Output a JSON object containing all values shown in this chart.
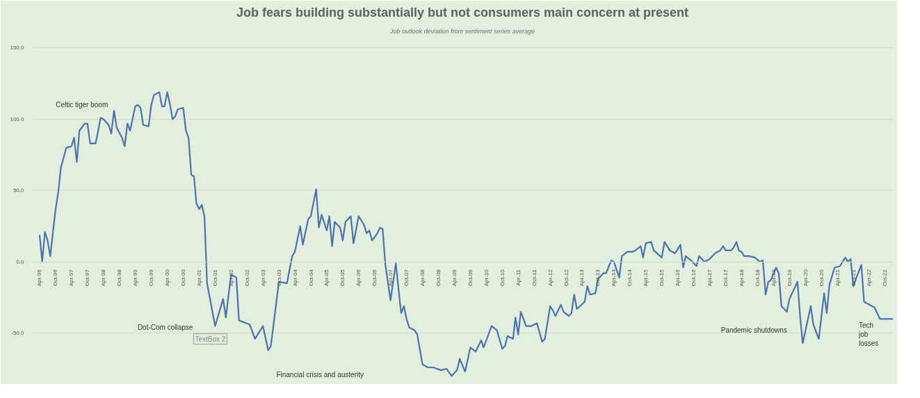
{
  "chart_data": {
    "type": "line",
    "title": "Job fears building substantially but not consumers main concern at present",
    "subtitle": "Job outlook deviation from sentiment series average",
    "x": [
      "1996-04",
      "1996-05",
      "1996-06",
      "1996-07",
      "1996-08",
      "1996-10",
      "1996-11",
      "1996-12",
      "1997-01",
      "1997-02",
      "1997-04",
      "1997-05",
      "1997-06",
      "1997-07",
      "1997-09",
      "1997-10",
      "1997-11",
      "1998-01",
      "1998-02",
      "1998-03",
      "1998-04",
      "1998-06",
      "1998-07",
      "1998-08",
      "1998-09",
      "1998-11",
      "1998-12",
      "1999-01",
      "1999-02",
      "1999-04",
      "1999-05",
      "1999-06",
      "1999-07",
      "1999-09",
      "1999-10",
      "1999-11",
      "2000-01",
      "2000-02",
      "2000-03",
      "2000-04",
      "2000-05",
      "2000-06",
      "2000-07",
      "2000-08",
      "2000-10",
      "2000-11",
      "2000-12",
      "2001-01",
      "2001-02",
      "2001-03",
      "2001-04",
      "2001-05",
      "2001-06",
      "2001-07",
      "2001-10",
      "2002-01",
      "2002-02",
      "2002-04",
      "2002-06",
      "2002-07",
      "2002-11",
      "2003-01",
      "2003-04",
      "2003-06",
      "2003-07",
      "2003-10",
      "2004-01",
      "2004-03",
      "2004-04",
      "2004-06",
      "2004-07",
      "2004-09",
      "2004-10",
      "2004-12",
      "2005-01",
      "2005-02",
      "2005-04",
      "2005-05",
      "2005-06",
      "2005-07",
      "2005-09",
      "2005-10",
      "2005-11",
      "2006-01",
      "2006-02",
      "2006-04",
      "2006-06",
      "2006-07",
      "2006-08",
      "2006-09",
      "2006-11",
      "2006-12",
      "2007-01",
      "2007-02",
      "2007-04",
      "2007-05",
      "2007-06",
      "2007-07",
      "2007-08",
      "2007-09",
      "2007-10",
      "2007-11",
      "2008-01",
      "2008-02",
      "2008-03",
      "2008-04",
      "2008-06",
      "2008-08",
      "2008-11",
      "2009-01",
      "2009-03",
      "2009-05",
      "2009-06",
      "2009-08",
      "2009-10",
      "2009-12",
      "2010-02",
      "2010-03",
      "2010-06",
      "2010-08",
      "2010-10",
      "2010-11",
      "2010-12",
      "2011-02",
      "2011-03",
      "2011-04",
      "2011-05",
      "2011-07",
      "2011-09",
      "2011-11",
      "2012-01",
      "2012-02",
      "2012-04",
      "2012-05",
      "2012-06",
      "2012-08",
      "2012-09",
      "2012-11",
      "2012-12",
      "2013-01",
      "2013-02",
      "2013-05",
      "2013-06",
      "2013-07",
      "2013-09",
      "2013-10",
      "2013-12",
      "2014-01",
      "2014-03",
      "2014-04",
      "2014-06",
      "2014-07",
      "2014-09",
      "2014-11",
      "2014-12",
      "2015-02",
      "2015-03",
      "2015-04",
      "2015-06",
      "2015-07",
      "2015-10",
      "2015-11",
      "2016-01",
      "2016-03",
      "2016-04",
      "2016-05",
      "2016-06",
      "2016-07",
      "2016-09",
      "2016-11",
      "2016-12",
      "2017-02",
      "2017-04",
      "2017-06",
      "2017-08",
      "2017-09",
      "2017-10",
      "2017-12",
      "2018-01",
      "2018-02",
      "2018-03",
      "2018-04",
      "2018-05",
      "2018-07",
      "2018-09",
      "2018-11",
      "2018-12",
      "2019-01",
      "2019-02",
      "2019-03",
      "2019-05",
      "2019-06",
      "2019-07",
      "2019-09",
      "2019-10",
      "2020-01",
      "2020-02",
      "2020-03",
      "2020-06",
      "2020-07",
      "2020-09",
      "2020-11",
      "2020-12",
      "2021-01",
      "2021-03",
      "2021-05",
      "2021-07",
      "2021-08",
      "2021-09",
      "2021-10",
      "2022-01",
      "2022-02",
      "2022-04",
      "2022-06",
      "2022-08",
      "2022-10",
      "2023-01"
    ],
    "series": [
      {
        "color": "#4a72b0",
        "values": [
          19,
          0,
          21,
          15,
          4,
          37,
          49,
          66,
          73,
          80,
          81,
          87,
          70,
          92,
          97,
          97,
          83,
          83,
          92,
          101,
          100,
          96,
          90,
          106,
          94,
          87,
          81,
          97,
          92,
          109,
          110,
          108,
          96,
          95,
          110,
          117,
          119,
          109,
          109,
          119,
          111,
          100,
          102,
          107,
          108,
          92,
          87,
          61,
          60,
          41,
          37,
          40,
          32,
          -15,
          -45,
          -26,
          -39,
          -9,
          -11,
          -41,
          -44,
          -54,
          -45,
          -62,
          -59,
          -14,
          -15,
          4,
          7,
          25,
          12,
          30,
          32,
          51,
          24,
          33,
          22,
          32,
          11,
          28,
          24,
          15,
          28,
          32,
          13,
          32,
          26,
          20,
          22,
          15,
          20,
          24,
          23,
          -2,
          -27,
          -14,
          -1,
          -19,
          -36,
          -31,
          -40,
          -46,
          -48,
          -51,
          -61,
          -72,
          -74,
          -74,
          -76,
          -75,
          -80,
          -76,
          -68,
          -77,
          -60,
          -63,
          -55,
          -60,
          -45,
          -48,
          -61,
          -59,
          -52,
          -54,
          -39,
          -51,
          -35,
          -45,
          -45,
          -43,
          -56,
          -54,
          -31,
          -34,
          -38,
          -30,
          -35,
          -38,
          -36,
          -23,
          -33,
          -28,
          -17,
          -23,
          -22,
          -12,
          -8,
          -8,
          1,
          0,
          -11,
          4,
          7,
          7,
          8,
          11,
          3,
          13,
          14,
          8,
          3,
          14,
          8,
          6,
          9,
          12,
          -4,
          4,
          1,
          -3,
          4,
          0,
          2,
          6,
          8,
          11,
          8,
          8,
          10,
          14,
          8,
          7,
          4,
          4,
          3,
          0,
          1,
          -23,
          -14,
          -13,
          -4,
          -8,
          -31,
          -35,
          -26,
          -14,
          -39,
          -57,
          -31,
          -44,
          -54,
          -22,
          -36,
          -16,
          -4,
          -3,
          3,
          0,
          2,
          -17,
          -2,
          -28,
          -30,
          -32,
          -40,
          -40,
          -40
        ]
      }
    ],
    "xlim": [
      "1996-01",
      "2023-01"
    ],
    "ylim": [
      -84,
      157
    ],
    "yticks": [
      {
        "value": -50,
        "label": "-50.0"
      },
      {
        "value": 0,
        "label": "0.0"
      },
      {
        "value": 50,
        "label": "50.0"
      },
      {
        "value": 100,
        "label": "100.0"
      },
      {
        "value": 150,
        "label": "150.0"
      }
    ],
    "xticks": [
      {
        "value": "1996-04",
        "label": "Apr-96"
      },
      {
        "value": "1996-10",
        "label": "Oct-96"
      },
      {
        "value": "1997-04",
        "label": "Apr-97"
      },
      {
        "value": "1997-10",
        "label": "Oct-97"
      },
      {
        "value": "1998-04",
        "label": "Apr-98"
      },
      {
        "value": "1998-10",
        "label": "Oct-98"
      },
      {
        "value": "1999-04",
        "label": "Apr-99"
      },
      {
        "value": "1999-10",
        "label": "Oct-99"
      },
      {
        "value": "2000-04",
        "label": "Apr-00"
      },
      {
        "value": "2000-10",
        "label": "Oct-00"
      },
      {
        "value": "2001-04",
        "label": "Apr-01"
      },
      {
        "value": "2001-10",
        "label": "Oct-01"
      },
      {
        "value": "2002-04",
        "label": "Apr-02"
      },
      {
        "value": "2002-10",
        "label": "Oct-02"
      },
      {
        "value": "2003-04",
        "label": "Apr-03"
      },
      {
        "value": "2003-10",
        "label": "Oct-03"
      },
      {
        "value": "2004-04",
        "label": "Apr-04"
      },
      {
        "value": "2004-10",
        "label": "Oct-04"
      },
      {
        "value": "2005-04",
        "label": "Apr-05"
      },
      {
        "value": "2005-10",
        "label": "Oct-05"
      },
      {
        "value": "2006-04",
        "label": "Apr-06"
      },
      {
        "value": "2006-10",
        "label": "Oct-06"
      },
      {
        "value": "2007-04",
        "label": "Apr-07"
      },
      {
        "value": "2007-10",
        "label": "Oct-07"
      },
      {
        "value": "2008-04",
        "label": "Apr-08"
      },
      {
        "value": "2008-10",
        "label": "Oct-08"
      },
      {
        "value": "2009-04",
        "label": "Apr-09"
      },
      {
        "value": "2009-10",
        "label": "Oct-09"
      },
      {
        "value": "2010-04",
        "label": "Apr-10"
      },
      {
        "value": "2010-10",
        "label": "Oct-10"
      },
      {
        "value": "2011-04",
        "label": "Apr-11"
      },
      {
        "value": "2011-10",
        "label": "Oct-11"
      },
      {
        "value": "2012-04",
        "label": "Apr-12"
      },
      {
        "value": "2012-10",
        "label": "Oct-12"
      },
      {
        "value": "2013-04",
        "label": "Apr-13"
      },
      {
        "value": "2013-10",
        "label": "Oct-13"
      },
      {
        "value": "2014-04",
        "label": "Apr-14"
      },
      {
        "value": "2014-10",
        "label": "Oct-14"
      },
      {
        "value": "2015-04",
        "label": "Apr-15"
      },
      {
        "value": "2015-10",
        "label": "Oct-15"
      },
      {
        "value": "2016-04",
        "label": "Apr-16"
      },
      {
        "value": "2016-10",
        "label": "Oct-16"
      },
      {
        "value": "2017-04",
        "label": "Apr-17"
      },
      {
        "value": "2017-10",
        "label": "Oct-17"
      },
      {
        "value": "2018-04",
        "label": "Apr-18"
      },
      {
        "value": "2018-10",
        "label": "Oct-18"
      },
      {
        "value": "2019-04",
        "label": "Apr-19"
      },
      {
        "value": "2019-10",
        "label": "Oct-19"
      },
      {
        "value": "2020-04",
        "label": "Apr-20"
      },
      {
        "value": "2020-10",
        "label": "Oct-20"
      },
      {
        "value": "2021-04",
        "label": "Apr-21"
      },
      {
        "value": "2021-10",
        "label": "Oct-21"
      },
      {
        "value": "2022-04",
        "label": "Apr-22"
      },
      {
        "value": "2022-10",
        "label": "Oct-22"
      }
    ],
    "annotations": [
      "Celtic tiger boom",
      "Dot-Com collapse",
      "TextBox 2",
      "Financial crisis and austerity",
      "Pandemic shutdowns",
      "Tech\njob\nlosses"
    ],
    "grid": "y",
    "line_style": "solid"
  }
}
